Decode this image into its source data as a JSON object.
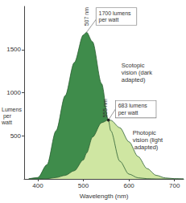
{
  "chart_data": {
    "type": "area",
    "x": [
      380,
      400,
      420,
      440,
      460,
      480,
      500,
      507,
      520,
      540,
      555,
      560,
      580,
      600,
      620,
      640,
      660,
      680,
      700,
      720
    ],
    "series": [
      {
        "name": "Scotopic vision (dark adapted)",
        "color": "#3f8c4b",
        "values": [
          1,
          16,
          164,
          558,
          964,
          1348,
          1669,
          1700,
          1590,
          1105,
          680,
          559,
          206,
          56,
          13,
          3,
          0,
          0,
          0,
          0
        ]
      },
      {
        "name": "Photopic vision (light adapted)",
        "color": "#cfe6a2",
        "values": [
          0,
          0,
          3,
          16,
          41,
          95,
          221,
          300,
          485,
          652,
          683,
          680,
          594,
          431,
          260,
          120,
          42,
          12,
          3,
          0
        ]
      }
    ],
    "xlabel": "Wavelength (nm)",
    "ylabel": "Lumens per watt",
    "xlim": [
      370,
      720
    ],
    "xticks": [
      400,
      500,
      600,
      700
    ],
    "ylim": [
      0,
      2000
    ],
    "yticks": [
      500,
      1000,
      1500
    ],
    "annotations": [
      {
        "text": "1700 lumens per watt",
        "x": 507,
        "y": 1700,
        "x_label": "507 nm"
      },
      {
        "text": "683 lumens per watt",
        "x": 555,
        "y": 683,
        "x_label": "555 nm"
      }
    ],
    "grid": false
  }
}
